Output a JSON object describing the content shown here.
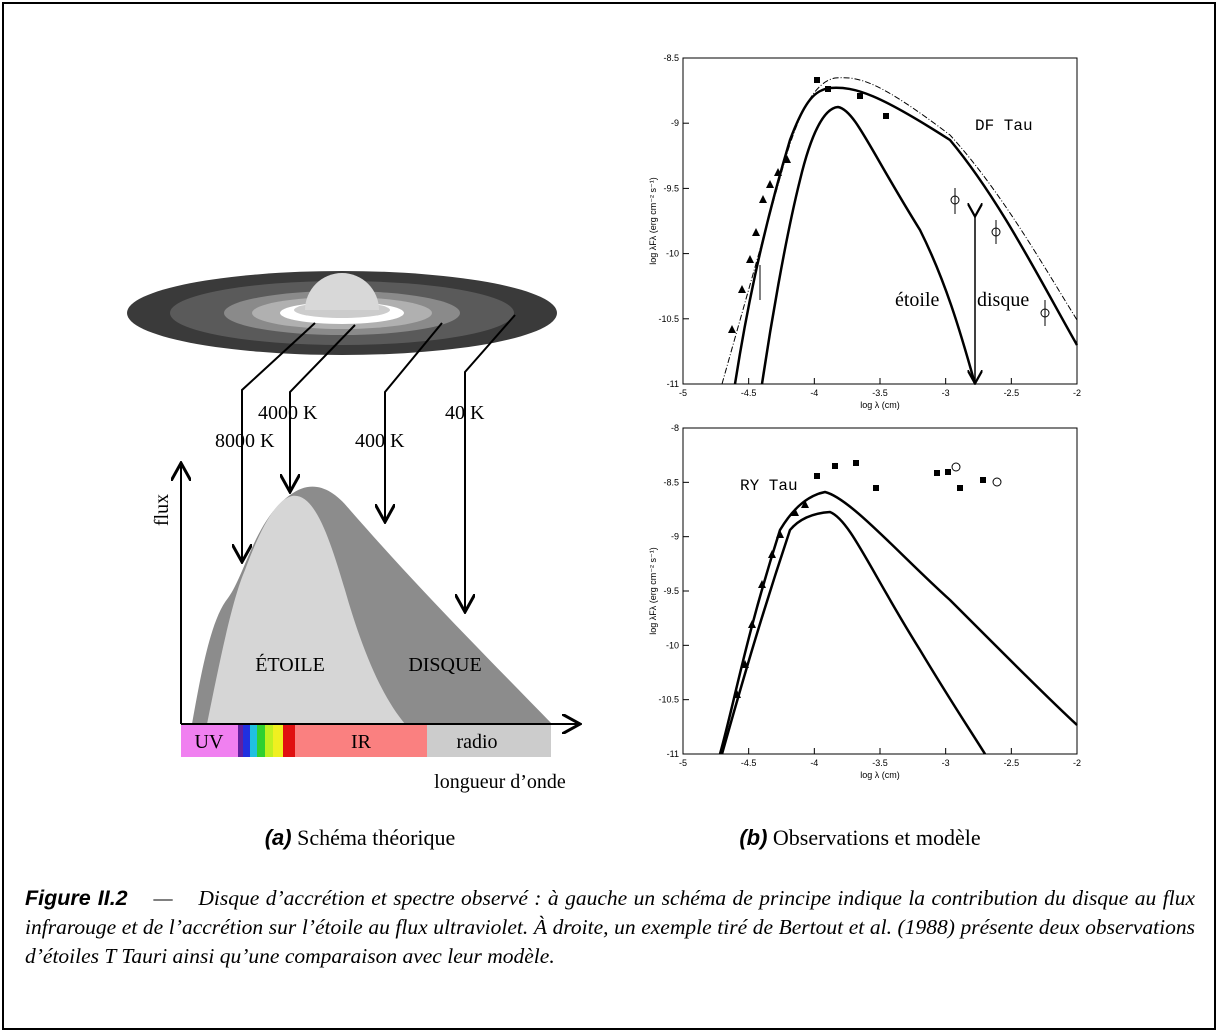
{
  "diagram": {
    "temperatures": [
      "8000 K",
      "4000 K",
      "400 K",
      "40 K"
    ],
    "y_axis": "flux",
    "regions": [
      "ÉTOILE",
      "DISQUE"
    ],
    "bands": [
      "UV",
      "IR",
      "radio"
    ],
    "x_axis": "longueur d’onde"
  },
  "plots": [
    {
      "name": "DF Tau",
      "xlabel": "log λ (cm)",
      "ylabel": "log λFλ (erg cm⁻² s⁻¹)",
      "xticks": [
        "-5",
        "-4.5",
        "-4",
        "-3.5",
        "-3",
        "-2.5",
        "-2"
      ],
      "yticks": [
        "-8.5",
        "-9",
        "-9.5",
        "-10",
        "-10.5",
        "-11"
      ],
      "labels": [
        "étoile",
        "disque"
      ]
    },
    {
      "name": "RY Tau",
      "xlabel": "log λ (cm)",
      "ylabel": "log λFλ (erg cm⁻² s⁻¹)",
      "xticks": [
        "-5",
        "-4.5",
        "-4",
        "-3.5",
        "-3",
        "-2.5",
        "-2"
      ],
      "yticks": [
        "-8",
        "-8.5",
        "-9",
        "-9.5",
        "-10",
        "-10.5",
        "-11"
      ]
    }
  ],
  "subcaptions": [
    {
      "label": "(a)",
      "text": "Schéma théorique"
    },
    {
      "label": "(b)",
      "text": "Observations et modèle"
    }
  ],
  "caption": {
    "label": "Figure II.2",
    "dash": "—",
    "text": "Disque d’accrétion et spectre observé : à gauche un schéma de principe indique la contribution du disque au flux infrarouge et de l’accrétion sur l’étoile au flux ultraviolet. À droite, un exemple tiré de Bertout et al. (1988) présente deux observations d’étoiles T Tauri ainsi qu’une comparaison avec leur modèle."
  }
}
